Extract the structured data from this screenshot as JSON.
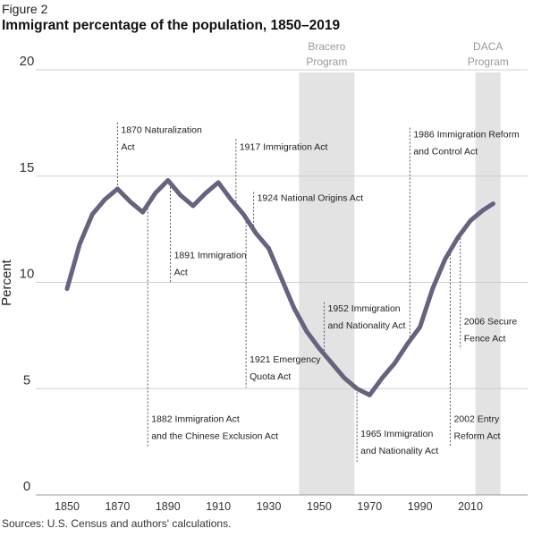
{
  "figure_label": "Figure 2",
  "title": "Immigrant percentage of the population, 1850–2019",
  "source": "Sources: U.S. Census and authors' calculations.",
  "colors": {
    "line": "#66627f",
    "band": "#e3e3e3",
    "grid": "#cfcfcf",
    "leader": "#555555"
  },
  "chart_data": {
    "type": "line",
    "title": "Immigrant percentage of the population, 1850–2019",
    "xlabel": "",
    "ylabel": "Percent",
    "xlim": [
      1840,
      2025
    ],
    "ylim": [
      0,
      20
    ],
    "xticks": [
      "1850",
      "1870",
      "1890",
      "1910",
      "1930",
      "1950",
      "1970",
      "1990",
      "2010"
    ],
    "yticks": [
      "0",
      "5",
      "10",
      "15",
      "20"
    ],
    "grid": "horizontal",
    "series": [
      {
        "x": [
          1850,
          1855,
          1860,
          1865,
          1870,
          1875,
          1880,
          1885,
          1890,
          1895,
          1900,
          1905,
          1910,
          1915,
          1920,
          1925,
          1930,
          1935,
          1940,
          1945,
          1950,
          1955,
          1960,
          1965,
          1970,
          1975,
          1980,
          1985,
          1990,
          1995,
          2000,
          2005,
          2010,
          2015,
          2019
        ],
        "values": [
          9.7,
          11.8,
          13.2,
          13.9,
          14.4,
          13.8,
          13.3,
          14.2,
          14.8,
          14.1,
          13.6,
          14.2,
          14.7,
          13.9,
          13.2,
          12.3,
          11.6,
          10.2,
          8.8,
          7.7,
          6.9,
          6.2,
          5.5,
          5.0,
          4.7,
          5.5,
          6.2,
          7.1,
          7.9,
          9.7,
          11.1,
          12.1,
          12.9,
          13.4,
          13.7
        ]
      }
    ],
    "bands": [
      {
        "label_line1": "Bracero",
        "label_line2": "Program",
        "x_start": 1942,
        "x_end": 1964
      },
      {
        "label_line1": "DACA",
        "label_line2": "Program",
        "x_start": 2012,
        "x_end": 2022
      }
    ],
    "annotations": [
      {
        "line1": "1870 Naturalization",
        "line2": "Act",
        "x": 1870,
        "text_y": 17.2,
        "dir": "up"
      },
      {
        "line1": "1882 Immigration Act",
        "line2": "and the Chinese Exclusion Act",
        "x": 1882,
        "text_y": 3.6,
        "dir": "down"
      },
      {
        "line1": "1891 Immigration",
        "line2": "Act",
        "x": 1891,
        "text_y": 11.3,
        "dir": "down"
      },
      {
        "line1": "1917 Immigration Act",
        "line2": "",
        "x": 1917,
        "text_y": 16.4,
        "dir": "up"
      },
      {
        "line1": "1921 Emergency",
        "line2": "Quota Act",
        "x": 1921,
        "text_y": 6.4,
        "dir": "down"
      },
      {
        "line1": "1924 National Origins Act",
        "line2": "",
        "x": 1924,
        "text_y": 14.0,
        "dir": "up"
      },
      {
        "line1": "1952 Immigration",
        "line2": "and Nationality Act",
        "x": 1952,
        "text_y": 8.8,
        "dir": "up"
      },
      {
        "line1": "1965 Immigration",
        "line2": "and Nationality Act",
        "x": 1965,
        "text_y": 2.9,
        "dir": "down"
      },
      {
        "line1": "1986 Immigration Reform",
        "line2": "and Control Act",
        "x": 1986,
        "text_y": 17.0,
        "dir": "up"
      },
      {
        "line1": "2002 Entry",
        "line2": "Reform Act",
        "x": 2002,
        "text_y": 3.6,
        "dir": "down"
      },
      {
        "line1": "2006 Secure",
        "line2": "Fence Act",
        "x": 2006,
        "text_y": 8.2,
        "dir": "down"
      }
    ]
  }
}
